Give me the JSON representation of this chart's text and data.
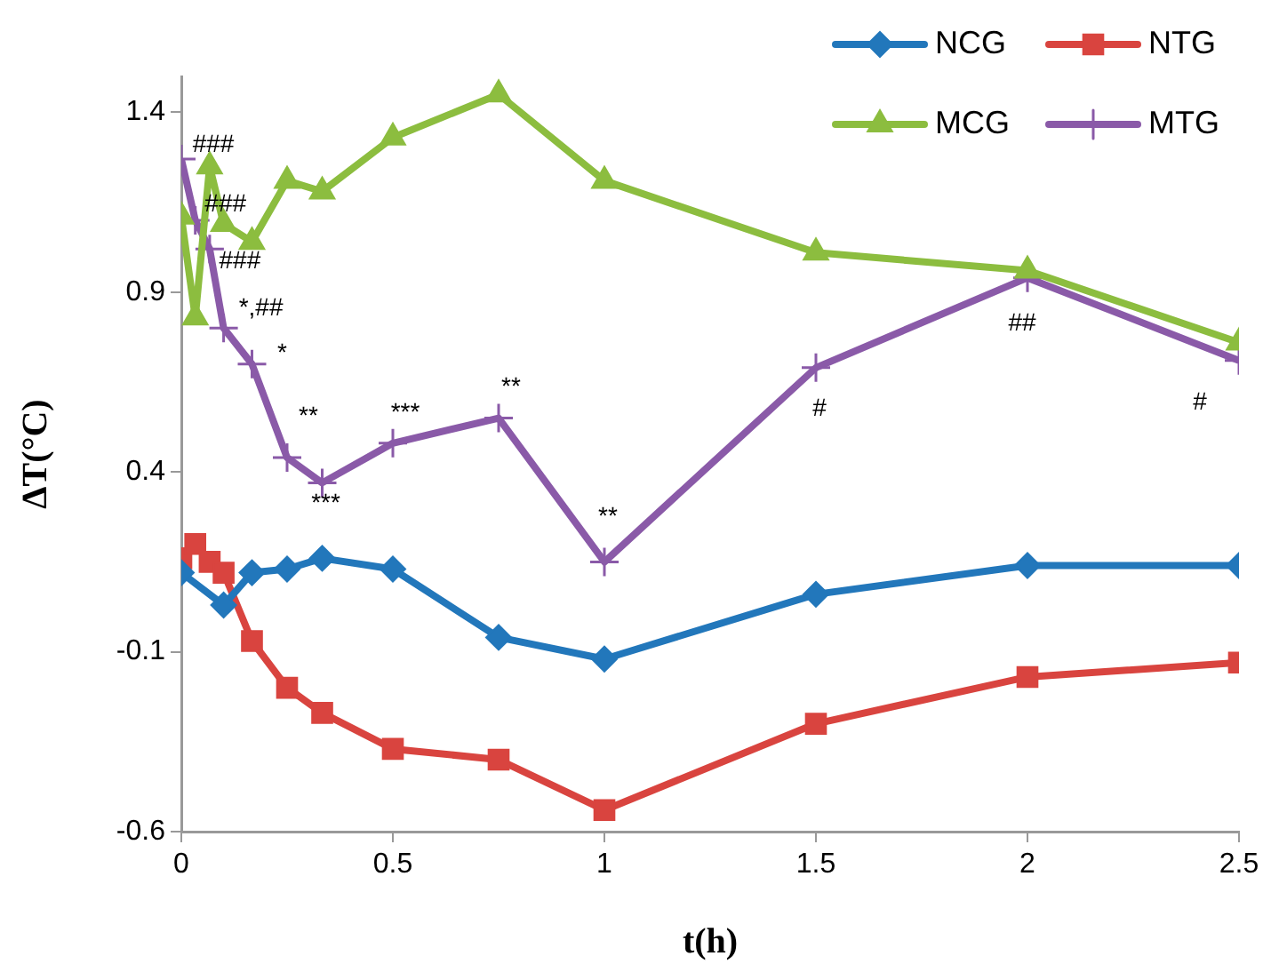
{
  "chart_data": {
    "type": "line",
    "xlabel": "t(h)",
    "ylabel": "ΔT(°C)",
    "x": [
      0,
      0.033,
      0.067,
      0.1,
      0.167,
      0.25,
      0.333,
      0.5,
      0.75,
      1,
      1.5,
      2,
      2.5
    ],
    "xlim": [
      0,
      2.5
    ],
    "xticks": [
      0,
      0.5,
      1,
      1.5,
      2,
      2.5
    ],
    "ylim": [
      -0.6,
      1.5
    ],
    "yticks": [
      -0.6,
      -0.1,
      0.4,
      0.9,
      1.4
    ],
    "grid": false,
    "legend": "top right",
    "line_style": "solid",
    "series": [
      {
        "name": "NCG",
        "color": "#2277bb",
        "marker": "diamond",
        "values": [
          0.12,
          null,
          null,
          0.03,
          0.12,
          0.13,
          0.16,
          0.13,
          -0.06,
          -0.12,
          0.06,
          0.14,
          0.14
        ]
      },
      {
        "name": "NTG",
        "color": "#d9443f",
        "marker": "square",
        "values": [
          0.16,
          0.2,
          0.15,
          0.12,
          -0.07,
          -0.2,
          -0.27,
          -0.37,
          -0.4,
          -0.54,
          -0.3,
          -0.17,
          -0.13
        ]
      },
      {
        "name": "MCG",
        "color": "#8cbd3f",
        "marker": "triangle",
        "values": [
          1.11,
          0.83,
          1.25,
          1.09,
          1.04,
          1.21,
          1.18,
          1.33,
          1.45,
          1.21,
          1.01,
          0.96,
          0.76
        ]
      },
      {
        "name": "MTG",
        "color": "#8a5aa8",
        "marker": "cross",
        "values": [
          1.27,
          1.1,
          1.02,
          0.8,
          0.7,
          0.44,
          0.37,
          0.48,
          0.55,
          0.15,
          0.69,
          0.94,
          0.71
        ]
      }
    ],
    "annotations": [
      {
        "text": "###",
        "x": 0,
        "y": 1.27
      },
      {
        "text": "###",
        "x": 0.033,
        "y": 1.1
      },
      {
        "text": "###",
        "x": 0.067,
        "y": 1.02
      },
      {
        "text": "*,##",
        "x": 0.1,
        "y": 0.8
      },
      {
        "text": "*",
        "x": 0.167,
        "y": 0.7
      },
      {
        "text": "**",
        "x": 0.25,
        "y": 0.44
      },
      {
        "text": "***",
        "x": 0.333,
        "y": 0.37
      },
      {
        "text": "***",
        "x": 0.5,
        "y": 0.48
      },
      {
        "text": "**",
        "x": 0.75,
        "y": 0.55
      },
      {
        "text": "**",
        "x": 1,
        "y": 0.15
      },
      {
        "text": "#",
        "x": 1.5,
        "y": 0.69
      },
      {
        "text": "##",
        "x": 2,
        "y": 0.94
      },
      {
        "text": "#",
        "x": 2.5,
        "y": 0.71
      }
    ]
  }
}
